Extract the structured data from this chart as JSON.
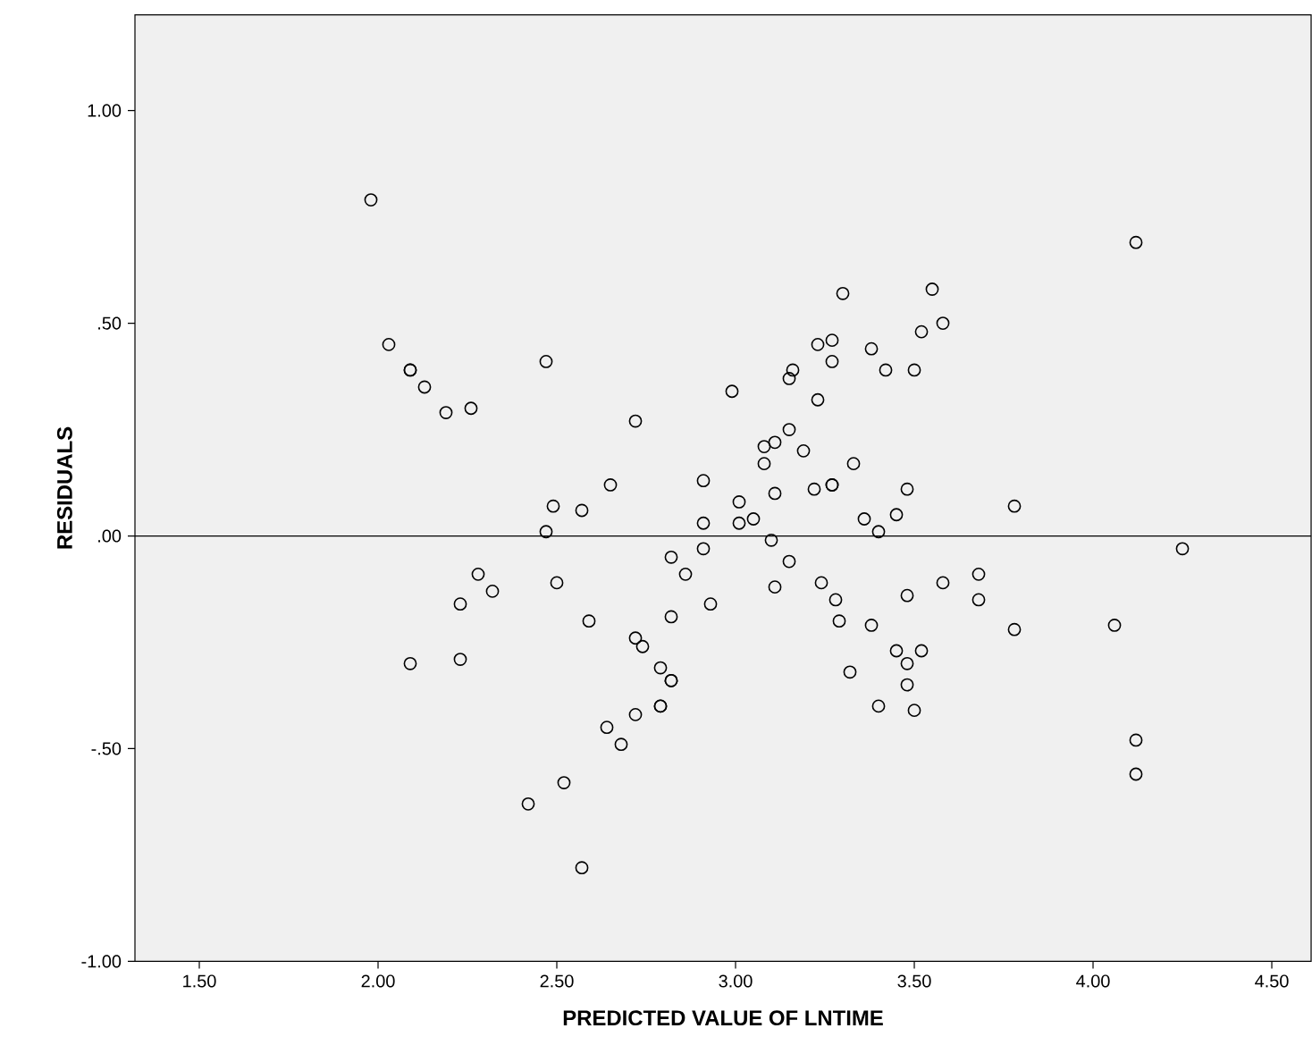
{
  "chart_data": {
    "type": "scatter",
    "xlabel": "PREDICTED VALUE OF LNTIME",
    "ylabel": "RESIDUALS",
    "marker": "circle",
    "grid": false,
    "xlim": [
      1.32,
      4.61
    ],
    "ylim": [
      -1.0,
      1.225
    ],
    "xticks": [
      {
        "value": 1.5,
        "label": "1.50"
      },
      {
        "value": 2.0,
        "label": "2.00"
      },
      {
        "value": 2.5,
        "label": "2.50"
      },
      {
        "value": 3.0,
        "label": "3.00"
      },
      {
        "value": 3.5,
        "label": "3.50"
      },
      {
        "value": 4.0,
        "label": "4.00"
      },
      {
        "value": 4.5,
        "label": "4.50"
      }
    ],
    "yticks": [
      {
        "value": -1.0,
        "label": "-1.00"
      },
      {
        "value": -0.5,
        "label": "-.50"
      },
      {
        "value": 0.0,
        "label": ".00"
      },
      {
        "value": 0.5,
        "label": ".50"
      },
      {
        "value": 1.0,
        "label": "1.00"
      }
    ],
    "ref_lines": [
      {
        "axis": "y",
        "value": 0,
        "color": "#000000"
      }
    ],
    "series": [
      {
        "color": "#000000",
        "x": [
          1.98,
          2.03,
          2.09,
          2.09,
          2.13,
          2.19,
          2.26,
          2.47,
          2.72,
          2.49,
          2.57,
          2.65,
          2.47,
          2.91,
          2.91,
          2.99,
          3.01,
          3.01,
          3.05,
          3.08,
          3.08,
          3.11,
          3.15,
          3.19,
          3.11,
          3.22,
          3.27,
          3.27,
          3.33,
          3.23,
          3.15,
          3.16,
          3.23,
          3.27,
          3.27,
          3.3,
          3.38,
          3.42,
          3.5,
          3.52,
          3.55,
          3.58,
          3.36,
          3.45,
          3.48,
          3.4,
          3.78,
          3.1,
          2.91,
          2.82,
          2.86,
          2.28,
          2.32,
          2.23,
          2.5,
          2.59,
          2.82,
          2.93,
          2.72,
          2.74,
          2.09,
          2.23,
          2.79,
          2.82,
          2.82,
          2.79,
          2.79,
          2.72,
          2.64,
          2.68,
          2.52,
          2.42,
          2.57,
          3.15,
          3.11,
          3.24,
          3.28,
          3.29,
          3.38,
          3.48,
          3.58,
          3.68,
          3.68,
          3.78,
          4.06,
          3.45,
          3.52,
          3.48,
          3.32,
          3.48,
          3.4,
          3.5,
          4.12,
          4.25,
          4.12,
          4.12
        ],
        "values": [
          0.79,
          0.45,
          0.39,
          0.39,
          0.35,
          0.29,
          0.3,
          0.41,
          0.27,
          0.07,
          0.06,
          0.12,
          0.01,
          0.13,
          0.03,
          0.34,
          0.08,
          0.03,
          0.04,
          0.17,
          0.21,
          0.22,
          0.25,
          0.2,
          0.1,
          0.11,
          0.12,
          0.12,
          0.17,
          0.32,
          0.37,
          0.39,
          0.45,
          0.46,
          0.41,
          0.57,
          0.44,
          0.39,
          0.39,
          0.48,
          0.58,
          0.5,
          0.04,
          0.05,
          0.11,
          0.01,
          0.07,
          -0.01,
          -0.03,
          -0.05,
          -0.09,
          -0.09,
          -0.13,
          -0.16,
          -0.11,
          -0.2,
          -0.19,
          -0.16,
          -0.24,
          -0.26,
          -0.3,
          -0.29,
          -0.31,
          -0.34,
          -0.34,
          -0.4,
          -0.4,
          -0.42,
          -0.45,
          -0.49,
          -0.58,
          -0.63,
          -0.78,
          -0.06,
          -0.12,
          -0.11,
          -0.15,
          -0.2,
          -0.21,
          -0.14,
          -0.11,
          -0.09,
          -0.15,
          -0.22,
          -0.21,
          -0.27,
          -0.27,
          -0.3,
          -0.32,
          -0.35,
          -0.4,
          -0.41,
          0.69,
          -0.03,
          -0.48,
          -0.56
        ]
      }
    ]
  }
}
